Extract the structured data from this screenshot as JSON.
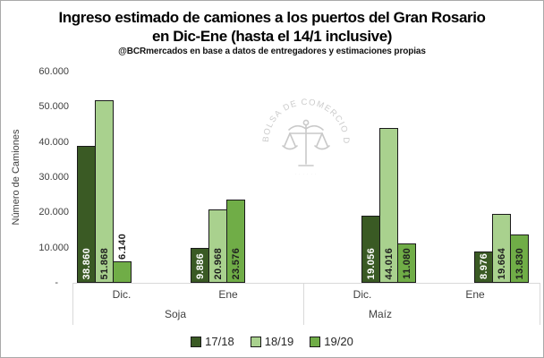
{
  "header": {
    "title_line1": "Ingreso estimado de camiones a los puertos del Gran Rosario",
    "title_line2": "en Dic-Ene (hasta el 14/1 inclusive)",
    "subtitle": "@BCRmercados en base a datos de entregadores y estimaciones propias"
  },
  "watermark": {
    "circle_text": "BOLSA DE COMERCIO DE ROSARIO",
    "emblem": "scales-icon",
    "color": "#cccccc"
  },
  "chart_data": {
    "type": "bar",
    "title": "Ingreso estimado de camiones a los puertos del Gran Rosario en Dic-Ene (hasta el 14/1 inclusive)",
    "subtitle": "@BCRmercados en base a datos de entregadores y estimaciones propias",
    "xlabel": "",
    "ylabel": "Número de Camiones",
    "ylim": [
      0,
      60000
    ],
    "ytick_labels": [
      "60.000",
      "50.000",
      "40.000",
      "30.000",
      "20.000",
      "10.000",
      "-"
    ],
    "grid": false,
    "legend_position": "bottom",
    "categories": [
      {
        "month": "Dic.",
        "group": "Soja"
      },
      {
        "month": "Ene",
        "group": "Soja"
      },
      {
        "month": "Dic.",
        "group": "Maíz"
      },
      {
        "month": "Ene",
        "group": "Maíz"
      }
    ],
    "group_labels": [
      "Soja",
      "Maíz"
    ],
    "series": [
      {
        "name": "17/18",
        "color": "#3a5a24",
        "label_color": "#ffffff",
        "values": [
          38860,
          9886,
          19056,
          8976
        ],
        "value_labels": [
          "38.860",
          "9.886",
          "19.056",
          "8.976"
        ]
      },
      {
        "name": "18/19",
        "color": "#a9d18e",
        "label_color": "#1f1f1f",
        "values": [
          51868,
          20968,
          44016,
          19664
        ],
        "value_labels": [
          "51.868",
          "20.968",
          "44.016",
          "19.664"
        ]
      },
      {
        "name": "19/20",
        "color": "#70ad47",
        "label_color": "#1f1f1f",
        "values": [
          6140,
          23576,
          11080,
          13830
        ],
        "value_labels": [
          "6.140",
          "23.576",
          "11.080",
          "13.830"
        ]
      }
    ]
  }
}
